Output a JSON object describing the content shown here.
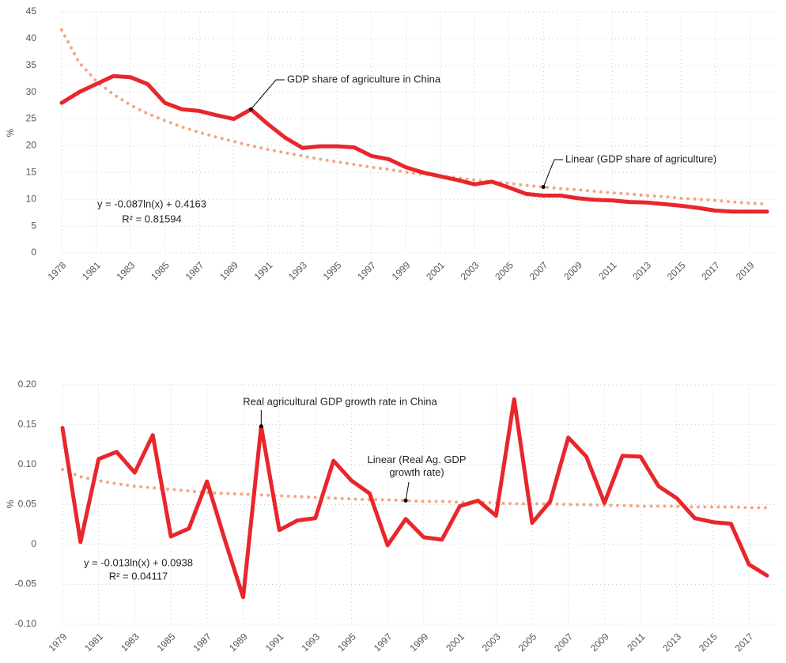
{
  "chart_data": [
    {
      "type": "line",
      "y_label": "%",
      "categories": [
        "1978",
        null,
        "1981",
        null,
        "1983",
        null,
        "1985",
        null,
        "1987",
        null,
        "1989",
        null,
        "1991",
        null,
        "1993",
        null,
        "1995",
        null,
        "1997",
        null,
        "1999",
        null,
        "2001",
        null,
        "2003",
        null,
        "2005",
        null,
        "2007",
        null,
        "2009",
        null,
        "2011",
        null,
        "2013",
        null,
        "2015",
        null,
        "2017",
        null,
        "2019",
        null
      ],
      "series": [
        {
          "name": "GDP share of agriculture in China",
          "color": "#e8262b",
          "style": "solid",
          "values": [
            28,
            30,
            31.5,
            33,
            32.8,
            31.5,
            28,
            26.8,
            26.5,
            25.7,
            25,
            26.8,
            24,
            21.5,
            19.6,
            19.9,
            19.9,
            19.7,
            18.1,
            17.5,
            16,
            15,
            14.3,
            13.6,
            12.8,
            13.3,
            12.2,
            11,
            10.7,
            10.7,
            10.2,
            9.9,
            9.8,
            9.5,
            9.4,
            9.1,
            8.8,
            8.4,
            7.9,
            7.7,
            7.7,
            7.7
          ]
        },
        {
          "name": "Linear (GDP share of agriculture)",
          "color": "#f4a582",
          "style": "dotted",
          "values": [
            41.6,
            35.6,
            32.1,
            29.6,
            27.6,
            26.0,
            24.7,
            23.5,
            22.5,
            21.6,
            20.8,
            20.0,
            19.3,
            18.7,
            18.1,
            17.5,
            17.0,
            16.5,
            16.0,
            15.6,
            15.1,
            14.7,
            14.4,
            14.0,
            13.6,
            13.3,
            13.0,
            12.6,
            12.3,
            12.0,
            11.8,
            11.5,
            11.2,
            11.0,
            10.7,
            10.5,
            10.2,
            10.0,
            9.8,
            9.5,
            9.3,
            9.1
          ]
        }
      ],
      "annotations": [
        "y = -0.087ln(x) + 0.4163",
        "R² = 0.81594"
      ],
      "ylim": [
        0,
        45
      ],
      "yticks": [
        0,
        5,
        10,
        15,
        20,
        25,
        30,
        35,
        40,
        45
      ],
      "grid": true
    },
    {
      "type": "line",
      "y_label": "%",
      "categories": [
        "1979",
        null,
        "1981",
        null,
        "1983",
        null,
        "1985",
        null,
        "1987",
        null,
        "1989",
        null,
        "1991",
        null,
        "1993",
        null,
        "1995",
        null,
        "1997",
        null,
        "1999",
        null,
        "2001",
        null,
        "2003",
        null,
        "2005",
        null,
        "2007",
        null,
        "2009",
        null,
        "2011",
        null,
        "2013",
        null,
        "2015",
        null,
        "2017",
        null
      ],
      "series": [
        {
          "name": "Real agricultural GDP growth rate in China",
          "color": "#e8262b",
          "style": "solid",
          "values": [
            0.146,
            0.003,
            0.107,
            0.116,
            0.09,
            0.137,
            0.01,
            0.02,
            0.079,
            0.005,
            -0.066,
            0.148,
            0.018,
            0.03,
            0.033,
            0.105,
            0.08,
            0.064,
            -0.001,
            0.032,
            0.009,
            0.006,
            0.048,
            0.055,
            0.036,
            0.182,
            0.027,
            0.054,
            0.134,
            0.11,
            0.052,
            0.111,
            0.11,
            0.073,
            0.058,
            0.033,
            0.028,
            0.026,
            -0.025,
            -0.039
          ]
        },
        {
          "name": "Linear (Real Ag. GDP growth rate)",
          "color": "#f4a582",
          "style": "dotted",
          "values": [
            0.094,
            0.085,
            0.08,
            0.076,
            0.073,
            0.071,
            0.069,
            0.067,
            0.065,
            0.064,
            0.063,
            0.062,
            0.061,
            0.06,
            0.059,
            0.058,
            0.057,
            0.056,
            0.056,
            0.055,
            0.054,
            0.054,
            0.053,
            0.053,
            0.052,
            0.051,
            0.051,
            0.051,
            0.05,
            0.05,
            0.049,
            0.049,
            0.048,
            0.048,
            0.048,
            0.047,
            0.047,
            0.047,
            0.046,
            0.046
          ]
        }
      ],
      "annotations": [
        "y = -0.013ln(x) + 0.0938",
        "R² = 0.04117"
      ],
      "ylim": [
        -0.1,
        0.2
      ],
      "yticks": [
        {
          "value": -0.1,
          "label": "-0.10"
        },
        -0.05,
        0,
        0.05,
        {
          "value": 0.1,
          "label": "0.10"
        },
        0.15,
        {
          "value": 0.2,
          "label": "0.20"
        }
      ],
      "grid": true
    }
  ]
}
